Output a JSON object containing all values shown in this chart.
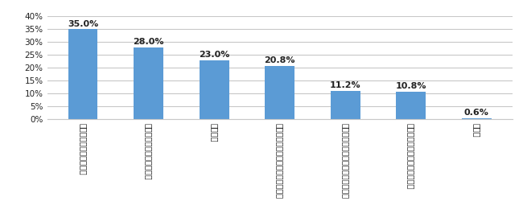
{
  "categories": [
    "本人の意向を尊重したい",
    "住んでいる場所の近くが楽",
    "特にない",
    "側の近くにいてあげたいいてほしい",
    "自分も一緒に入ることを想定したい",
    "自分や家族の希望も反映したい",
    "その他"
  ],
  "values": [
    35.0,
    28.0,
    23.0,
    20.8,
    11.2,
    10.8,
    0.6
  ],
  "bar_color": "#5b9bd5",
  "ylim": [
    0,
    40
  ],
  "yticks": [
    0,
    5,
    10,
    15,
    20,
    25,
    30,
    35,
    40
  ],
  "ytick_labels": [
    "0%",
    "5%",
    "10%",
    "15%",
    "20%",
    "25%",
    "30%",
    "35%",
    "40%"
  ],
  "bar_width": 0.45,
  "value_labels": [
    "35.0%",
    "28.0%",
    "23.0%",
    "20.8%",
    "11.2%",
    "10.8%",
    "0.6%"
  ],
  "bg_color": "#ffffff",
  "grid_color": "#c8c8c8",
  "text_color": "#222222",
  "label_fontsize": 7.0,
  "value_fontsize": 8.0
}
